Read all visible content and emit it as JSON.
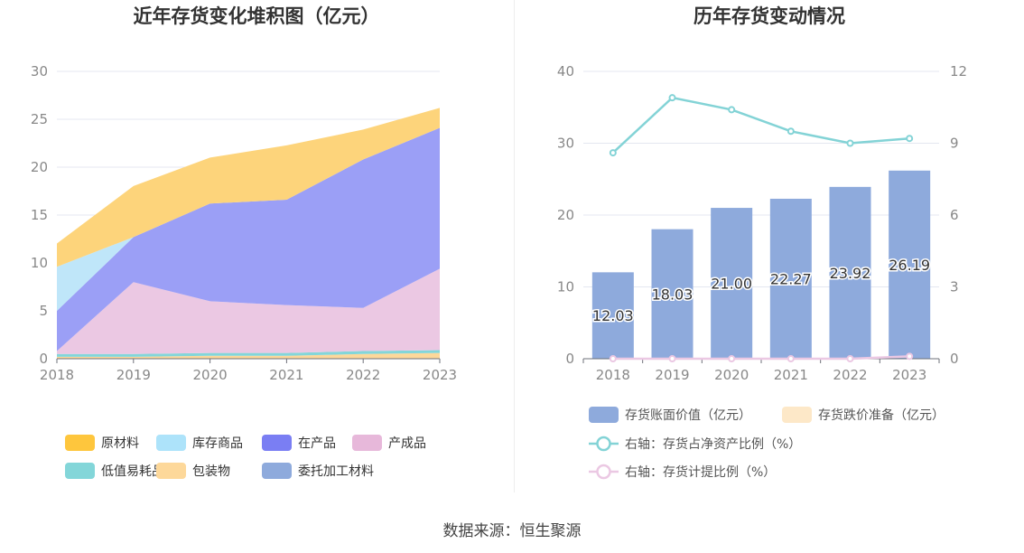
{
  "footer": {
    "source": "数据来源：恒生聚源"
  },
  "chart_data": [
    {
      "type": "area",
      "stacked": true,
      "title": "近年存货变化堆积图（亿元）",
      "x": [
        "2018",
        "2019",
        "2020",
        "2021",
        "2022",
        "2023"
      ],
      "ylim": [
        0,
        30
      ],
      "yticks": [
        0,
        5,
        10,
        15,
        20,
        25,
        30
      ],
      "series": [
        {
          "name": "委托加工材料",
          "color": "#8eaadc",
          "values": [
            0,
            0,
            0,
            0,
            0,
            0
          ]
        },
        {
          "name": "包装物",
          "color": "#fdd89a",
          "values": [
            0.2,
            0.2,
            0.3,
            0.3,
            0.5,
            0.6
          ]
        },
        {
          "name": "低值易耗品",
          "color": "#83d6d9",
          "values": [
            0.3,
            0.3,
            0.3,
            0.3,
            0.3,
            0.3
          ]
        },
        {
          "name": "产成品",
          "color": "#ebc8e3",
          "values": [
            0.3,
            7.5,
            5.4,
            5.0,
            4.5,
            8.5
          ]
        },
        {
          "name": "在产品",
          "color": "#9b9ff6",
          "values": [
            4.2,
            4.7,
            10.2,
            11.0,
            15.5,
            14.7
          ]
        },
        {
          "name": "库存商品",
          "color": "#bfe6f9",
          "values": [
            4.6,
            0,
            0,
            0,
            0,
            0
          ]
        },
        {
          "name": "原材料",
          "color": "#fdd47b",
          "values": [
            2.43,
            5.33,
            4.8,
            5.67,
            3.12,
            2.09
          ]
        }
      ],
      "legend": [
        {
          "name": "原材料",
          "color": "#fec63d"
        },
        {
          "name": "库存商品",
          "color": "#ade3fa"
        },
        {
          "name": "在产品",
          "color": "#7a7ef3"
        },
        {
          "name": "产成品",
          "color": "#e7b8da"
        },
        {
          "name": "低值易耗品",
          "color": "#83d6d9"
        },
        {
          "name": "包装物",
          "color": "#fdd89a"
        },
        {
          "name": "委托加工材料",
          "color": "#8eaadc"
        }
      ],
      "legend_position": "bottom",
      "grid": true
    },
    {
      "type": "bar+line",
      "title": "历年存货变动情况",
      "categories": [
        "2018",
        "2019",
        "2020",
        "2021",
        "2022",
        "2023"
      ],
      "ylim": [
        0,
        40
      ],
      "yticks": [
        0,
        10,
        20,
        30,
        40
      ],
      "y2lim": [
        0,
        12
      ],
      "y2ticks": [
        0,
        3,
        6,
        9,
        12
      ],
      "bars": [
        {
          "name": "存货账面价值（亿元）",
          "color": "#8eaadc",
          "values": [
            12.03,
            18.03,
            21.0,
            22.27,
            23.92,
            26.19
          ],
          "labels": [
            "12.03",
            "18.03",
            "21.00",
            "22.27",
            "23.92",
            "26.19"
          ]
        },
        {
          "name": "存货跌价准备（亿元）",
          "color": "#fde8c8",
          "values": [
            0,
            0,
            0,
            0,
            0,
            0
          ]
        }
      ],
      "lines": [
        {
          "name": "右轴：存货占净资产比例（%）",
          "color": "#83d3d6",
          "axis": "right",
          "values": [
            8.6,
            10.9,
            10.4,
            9.5,
            9.0,
            9.2
          ]
        },
        {
          "name": "右轴：存货计提比例（%）",
          "color": "#ebc8e3",
          "axis": "right",
          "values": [
            0.0,
            0.0,
            0.0,
            0.0,
            0.0,
            0.1
          ]
        }
      ],
      "legend_position": "bottom",
      "grid": true
    }
  ]
}
